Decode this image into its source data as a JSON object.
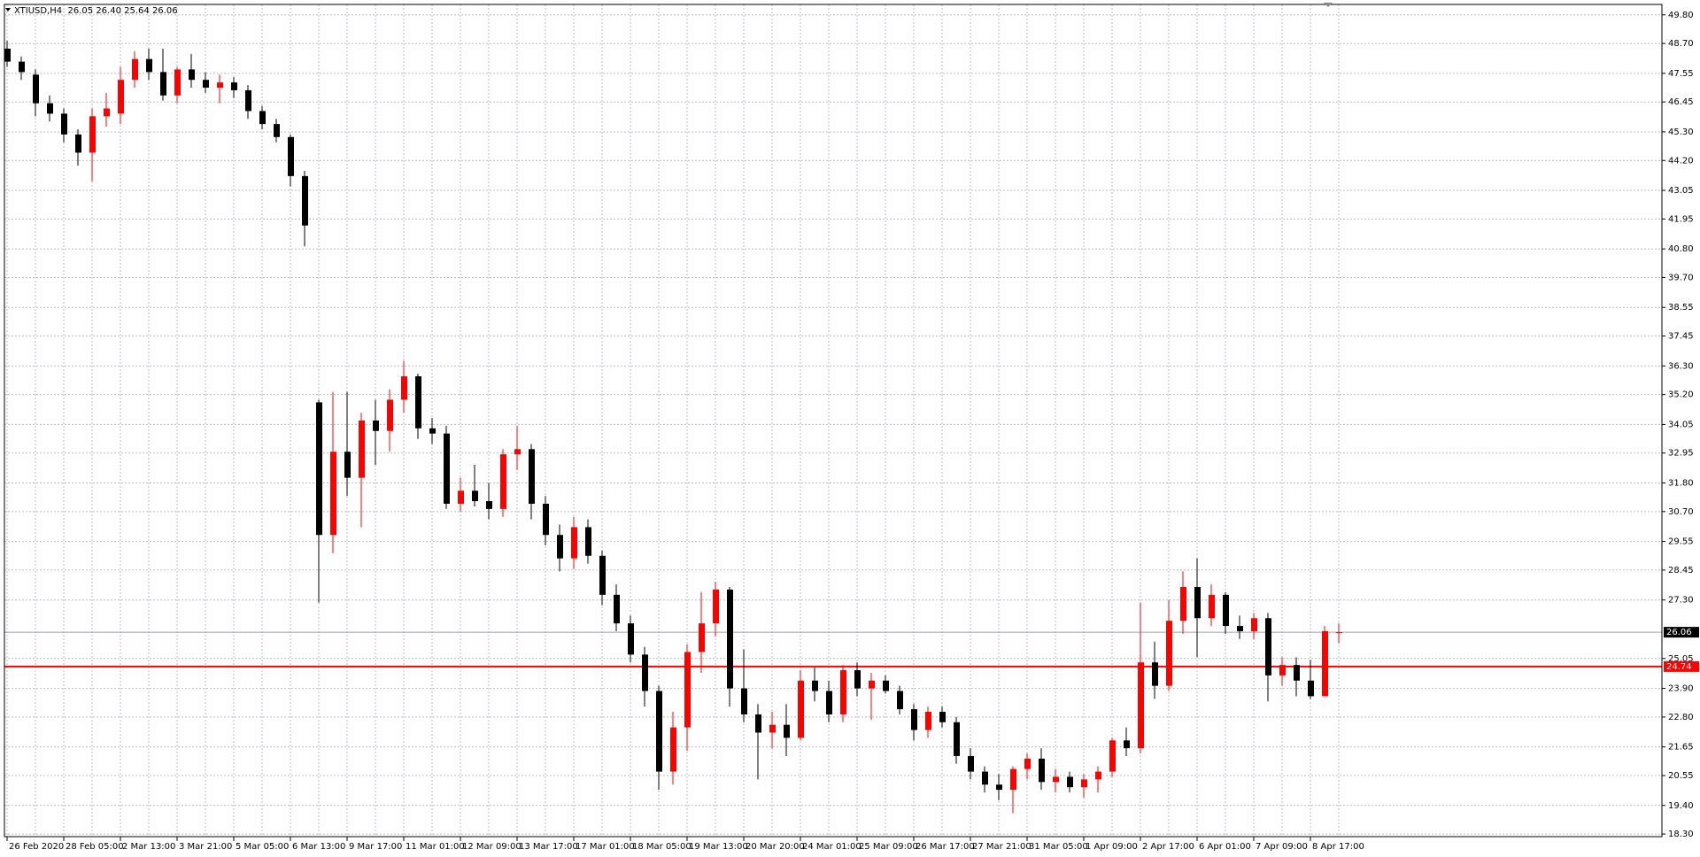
{
  "chart_data": {
    "type": "candlestick",
    "title": "XTIUSD,H4  26.05 26.40 25.64 26.06",
    "categories": [
      "26 Feb 2020",
      null,
      null,
      null,
      "28 Feb 05:00",
      null,
      null,
      null,
      "2 Mar 13:00",
      null,
      null,
      null,
      "3 Mar 21:00",
      null,
      null,
      null,
      "5 Mar 05:00",
      null,
      null,
      null,
      "6 Mar 13:00",
      null,
      null,
      null,
      "9 Mar 17:00",
      null,
      null,
      null,
      "11 Mar 01:00",
      null,
      null,
      null,
      "12 Mar 09:00",
      null,
      null,
      null,
      "13 Mar 17:00",
      null,
      null,
      null,
      "17 Mar 01:00",
      null,
      null,
      null,
      "18 Mar 05:00",
      null,
      null,
      null,
      "19 Mar 13:00",
      null,
      null,
      null,
      "20 Mar 20:00",
      null,
      null,
      null,
      "24 Mar 01:00",
      null,
      null,
      null,
      "25 Mar 09:00",
      null,
      null,
      null,
      "26 Mar 17:00",
      null,
      null,
      null,
      "27 Mar 21:00",
      null,
      null,
      null,
      "31 Mar 05:00",
      null,
      null,
      null,
      "1 Apr 09:00",
      null,
      null,
      null,
      "2 Apr 17:00",
      null,
      null,
      null,
      "6 Apr 01:00",
      null,
      null,
      null,
      "7 Apr 09:00",
      null,
      null,
      null,
      "8 Apr 17:00",
      null,
      null
    ],
    "open": [
      48.5,
      48.0,
      47.5,
      46.4,
      46.0,
      45.2,
      44.5,
      45.9,
      46.0,
      47.3,
      48.1,
      47.6,
      46.7,
      47.7,
      47.3,
      47.0,
      47.2,
      46.9,
      46.1,
      45.6,
      45.1,
      43.6,
      34.9,
      29.8,
      33.0,
      32.0,
      34.2,
      33.8,
      35.0,
      35.9,
      33.9,
      33.7,
      31.0,
      31.5,
      31.1,
      30.8,
      32.9,
      33.1,
      31.0,
      29.8,
      28.9,
      30.1,
      29.0,
      27.5,
      26.4,
      25.2,
      23.8,
      20.7,
      22.4,
      25.3,
      26.4,
      27.7,
      23.9,
      22.9,
      22.2,
      22.5,
      22.0,
      24.2,
      23.8,
      22.9,
      24.6,
      23.9,
      24.2,
      23.8,
      23.1,
      22.3,
      23.0,
      22.6,
      21.3,
      20.7,
      20.2,
      20.0,
      20.8,
      21.2,
      20.3,
      20.5,
      20.1,
      20.4,
      20.7,
      21.9,
      21.6,
      24.9,
      24.0,
      26.5,
      27.8,
      26.6,
      27.5,
      26.3,
      26.1,
      26.6,
      24.4,
      24.8,
      24.2,
      23.6,
      26.05
    ],
    "high": [
      48.8,
      48.2,
      47.7,
      46.7,
      46.2,
      45.4,
      46.2,
      46.8,
      47.8,
      48.4,
      48.5,
      48.5,
      47.8,
      48.3,
      47.6,
      47.5,
      47.4,
      47.1,
      46.3,
      45.8,
      45.2,
      43.8,
      35.0,
      35.3,
      35.3,
      34.5,
      35.0,
      35.4,
      36.5,
      36.0,
      34.3,
      34.0,
      32.0,
      32.5,
      31.8,
      33.1,
      34.0,
      33.3,
      31.3,
      30.2,
      30.5,
      30.4,
      29.2,
      27.9,
      26.7,
      25.5,
      24.0,
      23.0,
      25.6,
      27.6,
      28.0,
      27.8,
      25.4,
      23.3,
      23.0,
      23.3,
      24.6,
      24.7,
      24.2,
      24.8,
      24.9,
      24.5,
      24.4,
      24.0,
      23.3,
      23.2,
      23.2,
      22.8,
      21.6,
      20.9,
      20.6,
      20.9,
      21.4,
      21.6,
      20.8,
      20.7,
      20.6,
      20.9,
      22.0,
      22.4,
      27.2,
      25.7,
      27.3,
      28.4,
      28.9,
      27.9,
      27.6,
      26.7,
      26.8,
      26.8,
      25.1,
      25.1,
      25.0,
      26.3,
      26.4
    ],
    "low": [
      47.8,
      47.3,
      45.9,
      45.7,
      44.9,
      44.0,
      43.4,
      45.5,
      45.6,
      47.0,
      47.3,
      46.5,
      46.4,
      47.0,
      46.8,
      46.4,
      46.6,
      45.8,
      45.4,
      44.9,
      43.2,
      40.9,
      27.2,
      29.1,
      31.3,
      30.1,
      32.5,
      33.0,
      34.5,
      33.5,
      33.3,
      30.8,
      30.7,
      30.9,
      30.4,
      30.5,
      32.3,
      30.4,
      29.4,
      28.4,
      28.5,
      28.7,
      27.1,
      26.1,
      24.9,
      23.2,
      20.0,
      20.2,
      21.5,
      24.5,
      25.9,
      23.2,
      22.6,
      20.4,
      21.6,
      21.3,
      21.9,
      23.4,
      22.6,
      22.6,
      23.6,
      22.7,
      23.7,
      22.9,
      21.9,
      22.0,
      22.4,
      21.0,
      20.4,
      19.9,
      19.6,
      19.1,
      20.4,
      20.0,
      19.9,
      19.9,
      19.7,
      19.9,
      20.5,
      21.3,
      21.4,
      23.5,
      23.8,
      26.0,
      25.1,
      26.3,
      26.0,
      25.8,
      25.8,
      23.4,
      24.0,
      23.6,
      23.5,
      23.6,
      25.64
    ],
    "close": [
      48.0,
      47.6,
      46.4,
      46.0,
      45.2,
      44.5,
      45.9,
      46.2,
      47.3,
      48.1,
      47.6,
      46.7,
      47.7,
      47.3,
      47.0,
      47.2,
      46.9,
      46.1,
      45.6,
      45.1,
      43.6,
      41.7,
      29.8,
      33.0,
      32.0,
      34.2,
      33.8,
      35.0,
      35.9,
      33.9,
      33.7,
      31.0,
      31.5,
      31.1,
      30.8,
      32.9,
      33.1,
      31.0,
      29.8,
      28.9,
      30.1,
      29.0,
      27.5,
      26.4,
      25.2,
      23.8,
      20.7,
      22.4,
      25.3,
      26.4,
      27.7,
      23.9,
      22.9,
      22.2,
      22.5,
      22.0,
      24.2,
      23.8,
      22.9,
      24.6,
      23.9,
      24.2,
      23.8,
      23.1,
      22.3,
      23.0,
      22.6,
      21.3,
      20.7,
      20.2,
      20.0,
      20.8,
      21.2,
      20.3,
      20.5,
      20.1,
      20.4,
      20.7,
      21.9,
      21.6,
      24.9,
      24.0,
      26.5,
      27.8,
      26.6,
      27.5,
      26.3,
      26.1,
      26.6,
      24.4,
      24.8,
      24.2,
      23.6,
      26.1,
      26.06
    ],
    "up_color": "#ff0000",
    "down_color": "#000000",
    "ylim": [
      18.2,
      50.2
    ],
    "yticks": [
      {
        "value": 49.8,
        "label": "49.80"
      },
      {
        "value": 48.7,
        "label": "48.70"
      },
      {
        "value": 47.55,
        "label": "47.55"
      },
      {
        "value": 46.45,
        "label": "46.45"
      },
      {
        "value": 45.3,
        "label": "45.30"
      },
      {
        "value": 44.2,
        "label": "44.20"
      },
      {
        "value": 43.05,
        "label": "43.05"
      },
      {
        "value": 41.95,
        "label": "41.95"
      },
      {
        "value": 40.8,
        "label": "40.80"
      },
      {
        "value": 39.7,
        "label": "39.70"
      },
      {
        "value": 38.55,
        "label": "38.55"
      },
      {
        "value": 37.45,
        "label": "37.45"
      },
      {
        "value": 36.3,
        "label": "36.30"
      },
      {
        "value": 35.2,
        "label": "35.20"
      },
      {
        "value": 34.05,
        "label": "34.05"
      },
      {
        "value": 32.95,
        "label": "32.95"
      },
      {
        "value": 31.8,
        "label": "31.80"
      },
      {
        "value": 30.7,
        "label": "30.70"
      },
      {
        "value": 29.55,
        "label": "29.55"
      },
      {
        "value": 28.45,
        "label": "28.45"
      },
      {
        "value": 27.3,
        "label": "27.30"
      },
      {
        "value": 25.05,
        "label": "25.05"
      },
      {
        "value": 23.9,
        "label": "23.90"
      },
      {
        "value": 22.8,
        "label": "22.80"
      },
      {
        "value": 21.65,
        "label": "21.65"
      },
      {
        "value": 20.55,
        "label": "20.55"
      },
      {
        "value": 19.4,
        "label": "19.40"
      },
      {
        "value": 18.3,
        "label": "18.30"
      }
    ],
    "grid": true,
    "price_lines": [
      {
        "value": 26.06,
        "color": "#9aa0a8",
        "label_bg": "#000000"
      },
      {
        "value": 24.74,
        "color": "#ff0000",
        "label_bg": "#ff0000"
      }
    ]
  }
}
